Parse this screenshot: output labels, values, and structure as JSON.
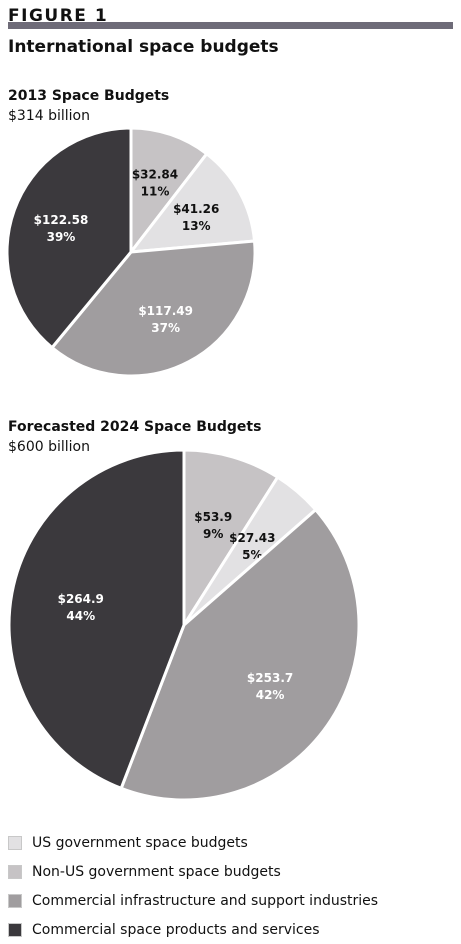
{
  "figure_label": "FIGURE 1",
  "title": "International space budgets",
  "legend": [
    {
      "label": "US government space budgets",
      "color": "#e2e1e3"
    },
    {
      "label": "Non-US government space budgets",
      "color": "#c6c3c5"
    },
    {
      "label": "Commercial infrastructure and support industries",
      "color": "#a09d9f"
    },
    {
      "label": "Commercial space products and services",
      "color": "#3b393d"
    }
  ],
  "chart_data": [
    {
      "type": "pie",
      "title": "2013 Space Budgets",
      "subtitle": "$314 billion",
      "slices": [
        {
          "name": "Non-US government space budgets",
          "value": 32.84,
          "value_label": "$32.84",
          "percent_label": "11%",
          "color": "#c6c3c5",
          "text_color": "#111111"
        },
        {
          "name": "US government space budgets",
          "value": 41.26,
          "value_label": "$41.26",
          "percent_label": "13%",
          "color": "#e2e1e3",
          "text_color": "#111111"
        },
        {
          "name": "Commercial infrastructure and support industries",
          "value": 117.49,
          "value_label": "$117.49",
          "percent_label": "37%",
          "color": "#a09d9f",
          "text_color": "#ffffff"
        },
        {
          "name": "Commercial space products and services",
          "value": 122.58,
          "value_label": "$122.58",
          "percent_label": "39%",
          "color": "#3b393d",
          "text_color": "#ffffff"
        }
      ]
    },
    {
      "type": "pie",
      "title": "Forecasted 2024 Space Budgets",
      "subtitle": "$600 billion",
      "slices": [
        {
          "name": "Non-US government space budgets",
          "value": 53.9,
          "value_label": "$53.9",
          "percent_label": "9%",
          "color": "#c6c3c5",
          "text_color": "#111111"
        },
        {
          "name": "US government space budgets",
          "value": 27.43,
          "value_label": "$27.43",
          "percent_label": "5%",
          "color": "#e2e1e3",
          "text_color": "#111111"
        },
        {
          "name": "Commercial infrastructure and support industries",
          "value": 253.7,
          "value_label": "$253.7",
          "percent_label": "42%",
          "color": "#a09d9f",
          "text_color": "#ffffff"
        },
        {
          "name": "Commercial space products and services",
          "value": 264.9,
          "value_label": "$264.9",
          "percent_label": "44%",
          "color": "#3b393d",
          "text_color": "#ffffff"
        }
      ]
    }
  ]
}
